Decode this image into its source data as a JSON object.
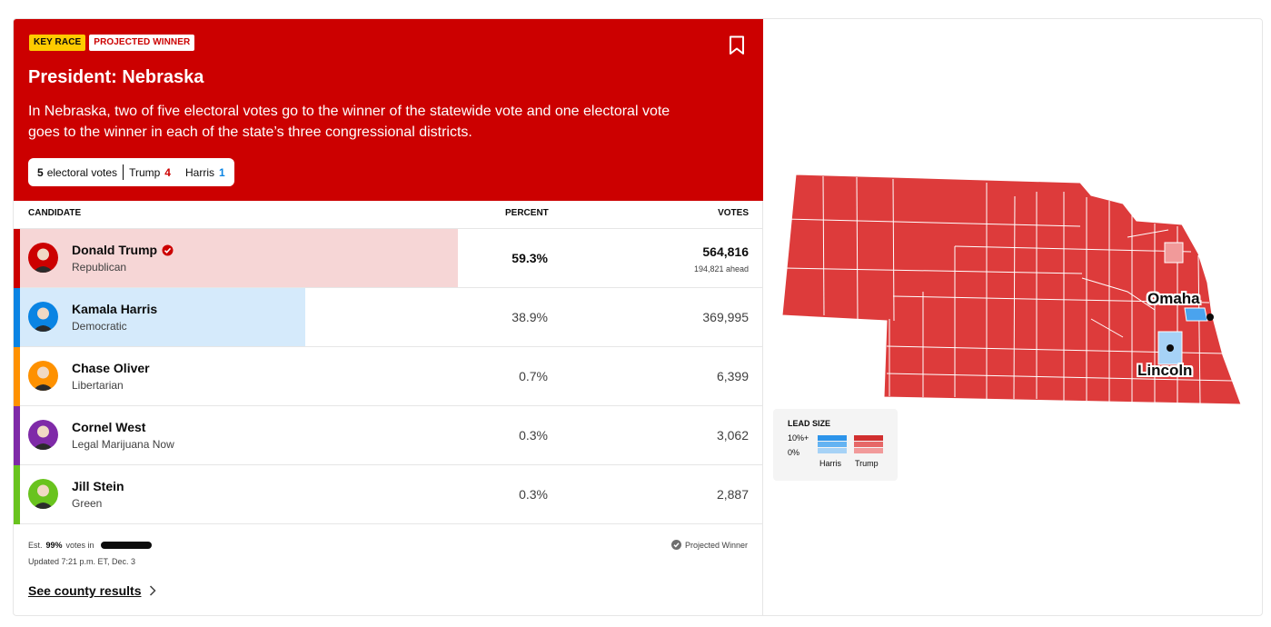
{
  "header": {
    "badge_key": "KEY RACE",
    "badge_projected": "PROJECTED WINNER",
    "title": "President: Nebraska",
    "description": "In Nebraska, two of five electoral votes go to the winner of the statewide vote and one electoral vote goes to the winner in each of the state’s three congressional districts.",
    "ev_total": "5",
    "ev_label": "electoral votes",
    "ev_trump_label": "Trump",
    "ev_trump": "4",
    "ev_harris_label": "Harris",
    "ev_harris": "1",
    "bookmark_icon": "bookmark-icon"
  },
  "columns": {
    "candidate": "CANDIDATE",
    "percent": "PERCENT",
    "votes": "VOTES"
  },
  "candidates": [
    {
      "name": "Donald Trump",
      "party": "Republican",
      "percent": "59.3%",
      "votes": "564,816",
      "ahead": "194,821 ahead",
      "winner": true,
      "color": "#cc0000",
      "bar_color": "#f6d6d6",
      "share": 0.593
    },
    {
      "name": "Kamala Harris",
      "party": "Democratic",
      "percent": "38.9%",
      "votes": "369,995",
      "color": "#0a84e3",
      "bar_color": "#d5eafb",
      "share": 0.389
    },
    {
      "name": "Chase Oliver",
      "party": "Libertarian",
      "percent": "0.7%",
      "votes": "6,399",
      "color": "#fe9100",
      "share": 0.007
    },
    {
      "name": "Cornel West",
      "party": "Legal Marijuana Now",
      "percent": "0.3%",
      "votes": "3,062",
      "color": "#7f2aa8",
      "share": 0.003
    },
    {
      "name": "Jill Stein",
      "party": "Green",
      "percent": "0.3%",
      "votes": "2,887",
      "color": "#69c31e",
      "share": 0.003
    }
  ],
  "footer": {
    "est_prefix": "Est.",
    "est_pct": "99%",
    "est_suffix": "votes in",
    "votes_in_fraction": 0.99,
    "updated": "Updated 7:21 p.m. ET, Dec. 3",
    "projected_winner": "Projected Winner",
    "see_county": "See county results"
  },
  "map": {
    "cities": [
      "Omaha",
      "Lincoln"
    ],
    "legend_title": "LEAD SIZE",
    "legend_high": "10%+",
    "legend_low": "0%",
    "legend_harris": "Harris",
    "legend_trump": "Trump",
    "trump_color": "#dd3b3b",
    "harris_color": "#4aa3ee"
  }
}
